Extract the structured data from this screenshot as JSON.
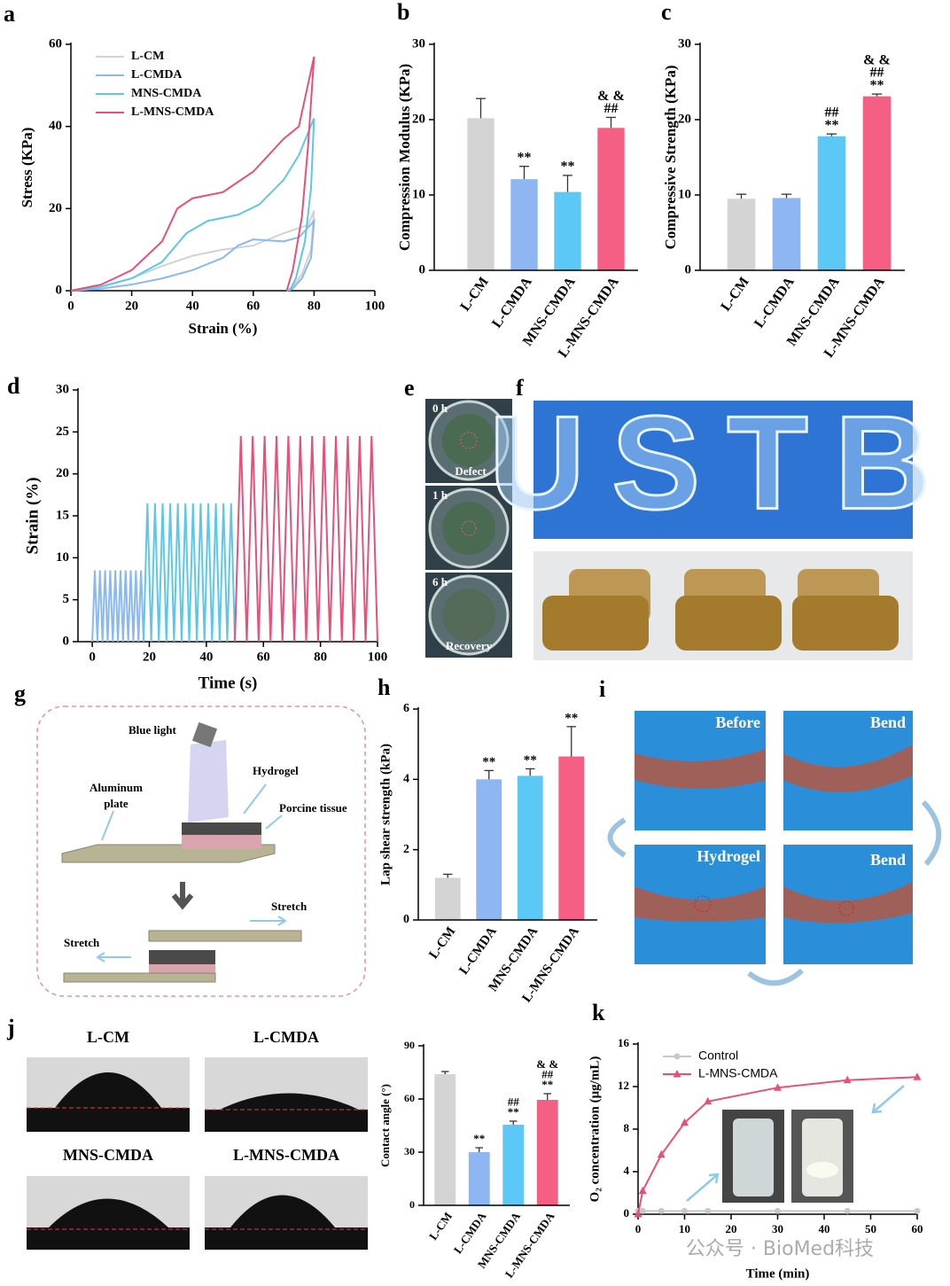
{
  "panel_labels": [
    "a",
    "b",
    "c",
    "d",
    "e",
    "f",
    "g",
    "h",
    "i",
    "j",
    "k"
  ],
  "chart_data": [
    {
      "type": "line",
      "xlabel": "Strain (%)",
      "ylabel": "Stress (KPa)",
      "xlim": [
        0,
        100
      ],
      "xticks": [
        0,
        20,
        40,
        60,
        80,
        100
      ],
      "ylim": [
        0,
        60
      ],
      "yticks": [
        0,
        20,
        40,
        60
      ],
      "legend": "upper left",
      "series": [
        {
          "name": "L-CM",
          "color": "#d2d2d2",
          "x": [
            0,
            10,
            20,
            30,
            40,
            50,
            60,
            70,
            78,
            80,
            79,
            76,
            73,
            71
          ],
          "values": [
            0,
            1,
            3,
            6,
            8.5,
            10,
            11,
            14,
            16,
            19.5,
            10,
            4,
            1,
            0
          ]
        },
        {
          "name": "L-CMDA",
          "color": "#8ab8f0",
          "x": [
            0,
            10,
            20,
            30,
            40,
            50,
            55,
            60,
            70,
            75,
            80,
            79,
            76,
            73,
            71
          ],
          "values": [
            0,
            0.5,
            1.5,
            3,
            5,
            8,
            11,
            12.5,
            12,
            13,
            17,
            8,
            3,
            0.5,
            0
          ]
        },
        {
          "name": "MNS-CMDA",
          "color": "#5bc8e8",
          "x": [
            0,
            10,
            20,
            30,
            38,
            45,
            55,
            62,
            70,
            75,
            80,
            79,
            77,
            74,
            72
          ],
          "values": [
            0,
            1,
            3,
            7,
            14,
            17,
            18.5,
            21,
            27,
            33,
            42,
            25,
            12,
            3,
            0
          ]
        },
        {
          "name": "L-MNS-CMDA",
          "color": "#e8507a",
          "x": [
            0,
            10,
            20,
            30,
            35,
            40,
            50,
            60,
            70,
            75,
            80,
            78,
            76,
            73,
            71
          ],
          "values": [
            0,
            1.5,
            5,
            12,
            20,
            22.5,
            24,
            29,
            37,
            40,
            57,
            35,
            18,
            5,
            0
          ]
        }
      ]
    },
    {
      "type": "bar",
      "ylabel": "Compression Modulus (KPa)",
      "categories": [
        "L-CM",
        "L-CMDA",
        "MNS-CMDA",
        "L-MNS-CMDA"
      ],
      "values": [
        20.2,
        12.1,
        10.4,
        18.9
      ],
      "errors": [
        2.6,
        1.7,
        2.2,
        1.4
      ],
      "colors": [
        "#d4d4d4",
        "#8db6f2",
        "#5cc8f6",
        "#f55f84"
      ],
      "annotations": [
        [],
        [
          "**"
        ],
        [
          "**"
        ],
        [
          "& &",
          "##"
        ]
      ],
      "ylim": [
        0,
        30
      ],
      "yticks": [
        0,
        10,
        20,
        30
      ]
    },
    {
      "type": "bar",
      "ylabel": "Compressive Strength (KPa)",
      "categories": [
        "L-CM",
        "L-CMDA",
        "MNS-CMDA",
        "L-MNS-CMDA"
      ],
      "values": [
        9.5,
        9.6,
        17.8,
        23.1
      ],
      "errors": [
        0.6,
        0.5,
        0.3,
        0.3
      ],
      "colors": [
        "#d4d4d4",
        "#8db6f2",
        "#5cc8f6",
        "#f55f84"
      ],
      "annotations": [
        [],
        [],
        [
          "##",
          "**"
        ],
        [
          "& &",
          "##",
          "**"
        ]
      ],
      "ylim": [
        0,
        30
      ],
      "yticks": [
        0,
        10,
        20,
        30
      ]
    },
    {
      "type": "line",
      "xlabel": "Time (s)",
      "ylabel": "Strain (%)",
      "xlim": [
        -5,
        100
      ],
      "xticks": [
        0,
        20,
        40,
        60,
        80,
        100
      ],
      "ylim": [
        0,
        30
      ],
      "yticks": [
        0,
        5,
        10,
        15,
        20,
        25,
        30
      ],
      "series": [
        {
          "color": "#8ab8f0",
          "x": [
            0,
            0.9,
            1.8,
            2.7,
            3.6,
            4.5,
            5.4,
            6.3,
            7.2,
            8.1,
            9,
            9.9,
            10.8,
            11.7,
            12.6,
            13.5,
            14.4,
            15.3,
            16.2,
            17.1,
            18
          ],
          "values": [
            0,
            8.5,
            0,
            8.5,
            0,
            8.5,
            0,
            8.5,
            0,
            8.5,
            0,
            8.5,
            0,
            8.5,
            0,
            8.5,
            0,
            8.5,
            0,
            8.5,
            0
          ]
        },
        {
          "color": "#5bc8e8",
          "x": [
            18,
            19.33,
            20.67,
            22,
            23.33,
            24.67,
            26,
            27.33,
            28.67,
            30,
            31.33,
            32.67,
            34,
            35.33,
            36.67,
            38,
            39.33,
            40.67,
            42,
            43.33,
            44.67,
            46,
            47.33,
            48.67,
            50
          ],
          "values": [
            0,
            16.5,
            0,
            16.5,
            0,
            16.5,
            0,
            16.5,
            0,
            16.5,
            0,
            16.5,
            0,
            16.5,
            0,
            16.5,
            0,
            16.5,
            0,
            16.5,
            0,
            16.5,
            0,
            16.5,
            0
          ]
        },
        {
          "color": "#e8507a",
          "x": [
            50,
            52.08,
            54.17,
            56.25,
            58.33,
            60.42,
            62.5,
            64.58,
            66.67,
            68.75,
            70.83,
            72.92,
            75,
            77.08,
            79.17,
            81.25,
            83.33,
            85.42,
            87.5,
            89.58,
            91.67,
            93.75,
            95.83,
            97.92,
            100
          ],
          "values": [
            0,
            24.5,
            0,
            24.5,
            0,
            24.5,
            0,
            24.5,
            0,
            24.5,
            0,
            24.5,
            0,
            24.5,
            0,
            24.5,
            0,
            24.5,
            0,
            24.5,
            0,
            24.5,
            0,
            24.5,
            0
          ]
        }
      ]
    },
    {
      "type": "bar",
      "ylabel": "Lap shear strength (kPa)",
      "categories": [
        "L-CM",
        "L-CMDA",
        "MNS-CMDA",
        "L-MNS-CMDA"
      ],
      "values": [
        1.2,
        4.0,
        4.1,
        4.65
      ],
      "errors": [
        0.1,
        0.25,
        0.2,
        0.85
      ],
      "colors": [
        "#d4d4d4",
        "#8db6f2",
        "#5cc8f6",
        "#f55f84"
      ],
      "annotations": [
        [],
        [
          "**"
        ],
        [
          "**"
        ],
        [
          "**"
        ]
      ],
      "ylim": [
        0,
        6
      ],
      "yticks": [
        0,
        2,
        4,
        6
      ]
    },
    {
      "type": "bar",
      "ylabel": "Contact angle (°)",
      "categories": [
        "L-CM",
        "L-CMDA",
        "MNS-CMDA",
        "L-MNS-CMDA"
      ],
      "values": [
        74,
        30,
        45.5,
        59.5
      ],
      "errors": [
        1.5,
        2.5,
        2,
        3.5
      ],
      "colors": [
        "#d4d4d4",
        "#8db6f2",
        "#5cc8f6",
        "#f55f84"
      ],
      "annotations": [
        [],
        [
          "**"
        ],
        [
          "##",
          "**"
        ],
        [
          "& &",
          "##",
          "**"
        ]
      ],
      "ylim": [
        0,
        90
      ],
      "yticks": [
        0,
        30,
        60,
        90
      ]
    },
    {
      "type": "line",
      "xlabel": "Time (min)",
      "ylabel": "O₂ concentration (μg/mL)",
      "xlim": [
        0,
        60
      ],
      "xticks": [
        0,
        10,
        20,
        30,
        40,
        50,
        60
      ],
      "ylim": [
        0,
        16
      ],
      "yticks": [
        0,
        4,
        8,
        12,
        16
      ],
      "legend": "upper left",
      "markers": true,
      "x": [
        0,
        1,
        5,
        10,
        15,
        30,
        45,
        60
      ],
      "series": [
        {
          "name": "Control",
          "color": "#c8c8c8",
          "marker": "circle",
          "values": [
            0.3,
            0.3,
            0.3,
            0.3,
            0.3,
            0.3,
            0.3,
            0.3
          ]
        },
        {
          "name": "L-MNS-CMDA",
          "color": "#e8507a",
          "marker": "triangle",
          "values": [
            0,
            2.2,
            5.6,
            8.6,
            10.6,
            11.9,
            12.6,
            12.9
          ]
        }
      ]
    }
  ],
  "panel_e": {
    "images": [
      {
        "time": "0 h",
        "caption": "Defect"
      },
      {
        "time": "1 h"
      },
      {
        "time": "6 h",
        "caption": "Recovery"
      }
    ]
  },
  "panel_f": {
    "letters": "USTB"
  },
  "panel_g": {
    "blue_light": "Blue light",
    "hydrogel": "Hydrogel",
    "aluminum_plate": [
      "Aluminum",
      "plate"
    ],
    "porcine_tissue": "Porcine tissue",
    "stretch_right": "Stretch",
    "stretch_left": "Stretch"
  },
  "panel_i": {
    "images": [
      "Before",
      "Bend",
      "Hydrogel",
      "Bend"
    ]
  },
  "panel_j": {
    "images": [
      "L-CM",
      "L-CMDA",
      "MNS-CMDA",
      "L-MNS-CMDA"
    ]
  },
  "watermark": "公众号 · BioMed科技"
}
